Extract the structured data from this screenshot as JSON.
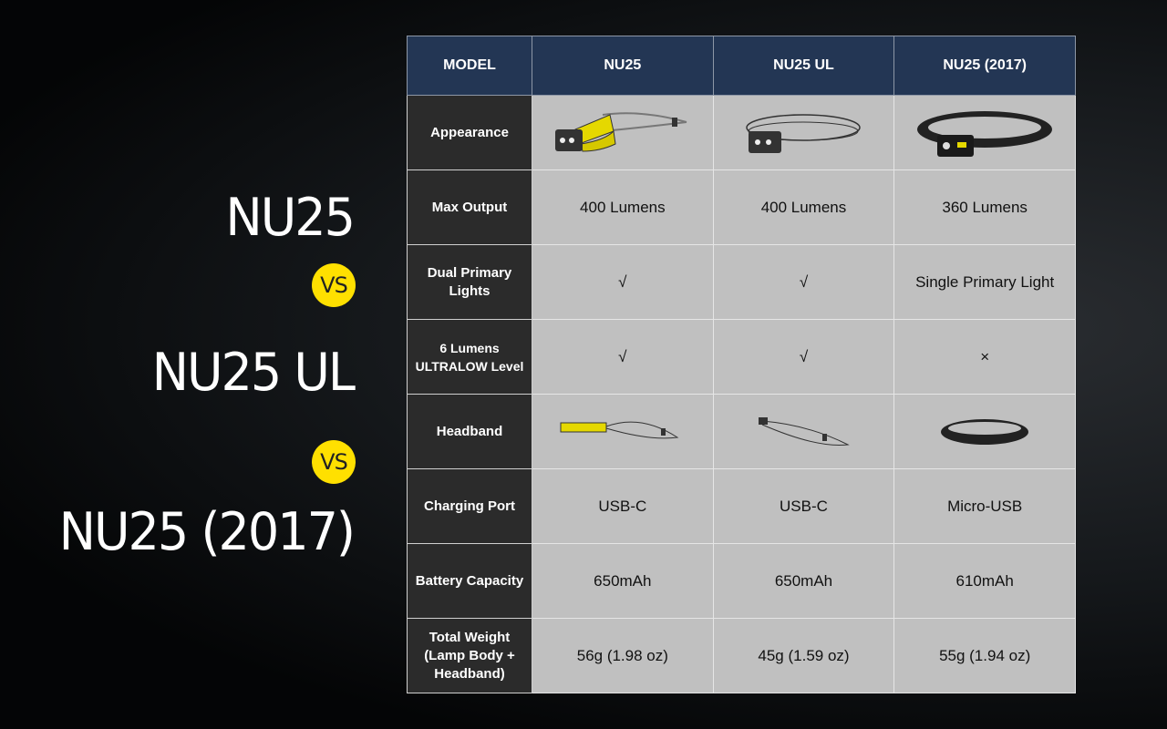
{
  "titles": [
    "NU25",
    "NU25 UL",
    "NU25 (2017)"
  ],
  "vs_label": "VS",
  "colors": {
    "header_bg": "#233654",
    "label_bg": "#2b2b2b",
    "cell_bg": "#c0c0c0",
    "vs_badge": "#ffe000",
    "nu25_band": "#e5d800"
  },
  "table": {
    "headers": [
      "MODEL",
      "NU25",
      "NU25 UL",
      "NU25 (2017)"
    ],
    "rows": [
      {
        "label": "Appearance",
        "cells": [
          "image:nu25-headlamp",
          "image:nu25ul-headlamp",
          "image:nu25-2017-headlamp"
        ]
      },
      {
        "label": "Max Output",
        "cells": [
          "400 Lumens",
          "400 Lumens",
          "360 Lumens"
        ]
      },
      {
        "label": "Dual Primary Lights",
        "cells": [
          "√",
          "√",
          "Single Primary Light"
        ]
      },
      {
        "label": "6 Lumens ULTRALOW Level",
        "cells": [
          "√",
          "√",
          "×"
        ]
      },
      {
        "label": "Headband",
        "cells": [
          "image:nu25-headband",
          "image:nu25ul-headband",
          "image:nu25-2017-headband"
        ]
      },
      {
        "label": "Charging Port",
        "cells": [
          "USB-C",
          "USB-C",
          "Micro-USB"
        ]
      },
      {
        "label": "Battery Capacity",
        "cells": [
          "650mAh",
          "650mAh",
          "610mAh"
        ]
      },
      {
        "label": "Total Weight (Lamp Body + Headband)",
        "cells": [
          "56g (1.98 oz)",
          "45g (1.59 oz)",
          "55g (1.94 oz)"
        ]
      }
    ]
  }
}
